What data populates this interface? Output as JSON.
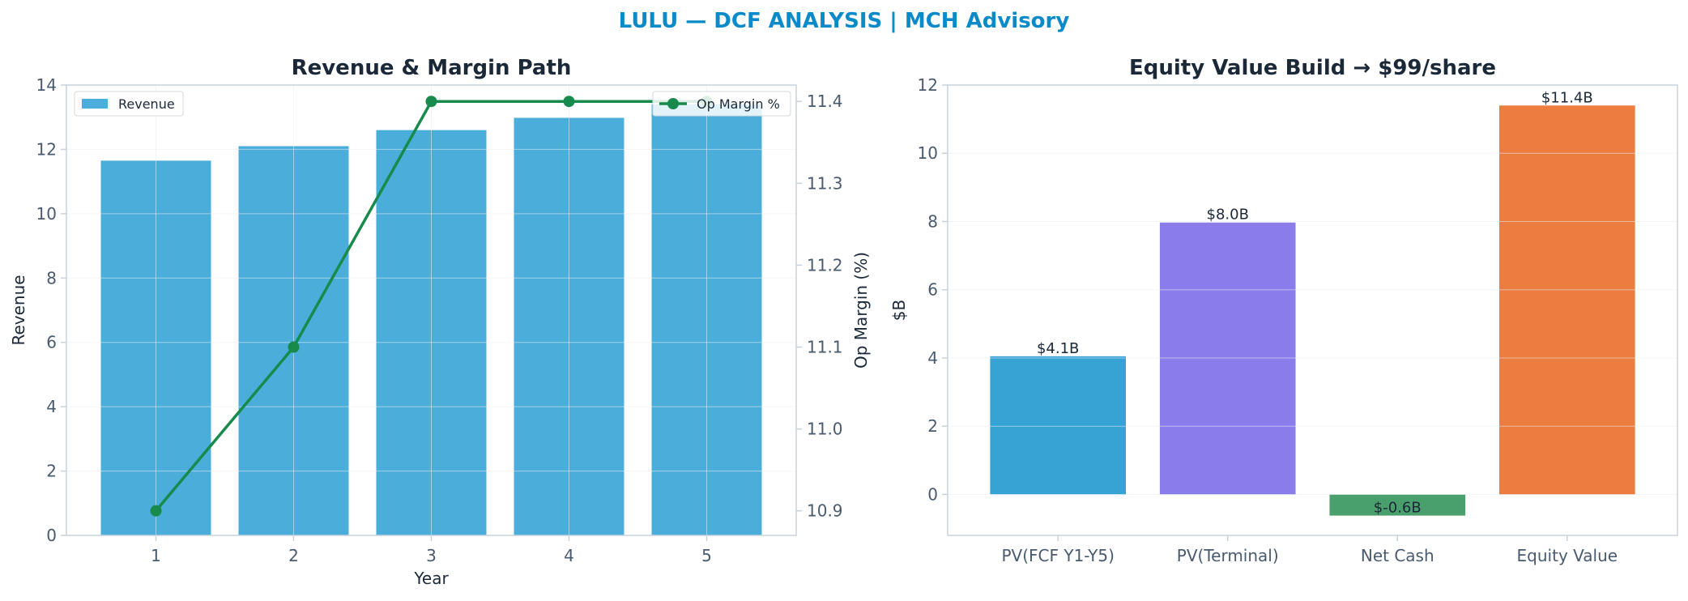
{
  "page_title": "LULU — DCF ANALYSIS | MCH Advisory",
  "colors": {
    "title": "#0b8ac9",
    "revenue_bar": "#4badda",
    "op_margin_line": "#178a4c",
    "pv_fcf": "#35a3d4",
    "pv_terminal": "#8a7deb",
    "net_cash": "#4aa06c",
    "equity_value": "#ed7c3f",
    "axis": "#c8d2dc",
    "grid": "#e9eef3"
  },
  "chart_data": [
    {
      "type": "bar",
      "title": "Revenue & Margin Path",
      "xlabel": "Year",
      "ylabel": "Revenue",
      "y2label": "Op Margin (%)",
      "categories": [
        "1",
        "2",
        "3",
        "4",
        "5"
      ],
      "ylim": [
        0,
        14
      ],
      "y_ticks": [
        0,
        2,
        4,
        6,
        8,
        10,
        12,
        14
      ],
      "y2lim": [
        10.87,
        11.42
      ],
      "y2_ticks": [
        10.9,
        11.0,
        11.1,
        11.2,
        11.3,
        11.4
      ],
      "series": [
        {
          "name": "Revenue",
          "kind": "bar",
          "axis": "left",
          "values": [
            11.65,
            12.1,
            12.6,
            12.98,
            13.4
          ]
        },
        {
          "name": "Op Margin %",
          "kind": "line",
          "axis": "right",
          "values": [
            10.9,
            11.1,
            11.4,
            11.4,
            11.4
          ]
        }
      ],
      "legend": [
        {
          "name": "Revenue",
          "placement": "top-left"
        },
        {
          "name": "Op Margin %",
          "placement": "top-right"
        }
      ],
      "grid": true
    },
    {
      "type": "bar",
      "title": "Equity Value Build → $99/share",
      "xlabel": "",
      "ylabel": "$B",
      "categories": [
        "PV(FCF Y1-Y5)",
        "PV(Terminal)",
        "Net Cash",
        "Equity Value"
      ],
      "values": [
        4.05,
        7.97,
        -0.62,
        11.4
      ],
      "data_labels": [
        "$4.1B",
        "$8.0B",
        "$-0.6B",
        "$11.4B"
      ],
      "ylim": [
        -1.2,
        12
      ],
      "y_ticks": [
        0,
        2,
        4,
        6,
        8,
        10,
        12
      ],
      "grid": true
    }
  ]
}
